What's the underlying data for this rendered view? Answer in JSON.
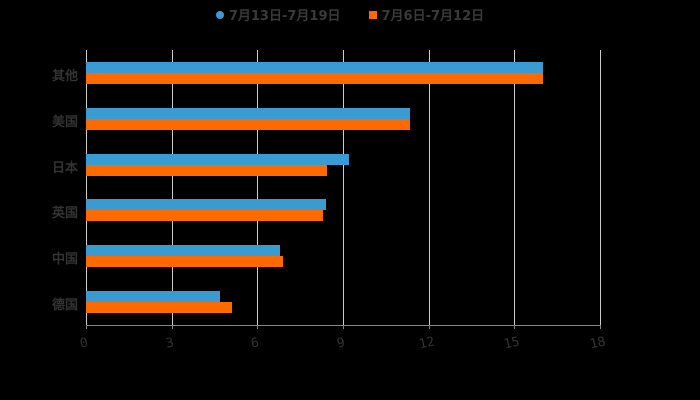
{
  "chart_data": {
    "type": "bar",
    "orientation": "horizontal",
    "categories": [
      "其他",
      "美国",
      "日本",
      "英国",
      "中国",
      "德国"
    ],
    "series": [
      {
        "name": "7月13日-7月19日",
        "color": "#3a9bd2",
        "values": [
          16,
          11.35,
          9.2,
          8.4,
          6.8,
          4.7
        ]
      },
      {
        "name": "7月6日-7月12日",
        "color": "#ff6a00",
        "values": [
          16,
          11.35,
          8.45,
          8.3,
          6.9,
          5.1
        ]
      }
    ],
    "xticks": [
      "0",
      "3",
      "6",
      "9",
      "12",
      "15",
      "18"
    ],
    "xlim": [
      0,
      18
    ],
    "grid": true,
    "legend_position": "top"
  }
}
